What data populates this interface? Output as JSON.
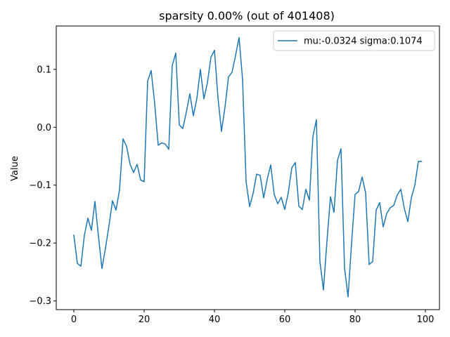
{
  "chart_data": {
    "type": "line",
    "title": "sparsity 0.00% (out of 401408)",
    "xlabel": "",
    "ylabel": "Value",
    "xlim": [
      -5,
      104
    ],
    "ylim": [
      -0.315,
      0.175
    ],
    "xticks": [
      0,
      20,
      40,
      60,
      80,
      100
    ],
    "xtick_labels": [
      "0",
      "20",
      "40",
      "60",
      "80",
      "100"
    ],
    "yticks": [
      -0.3,
      -0.2,
      -0.1,
      0.0,
      0.1
    ],
    "ytick_labels": [
      "−0.3",
      "−0.2",
      "−0.1",
      "0.0",
      "0.1"
    ],
    "grid": false,
    "legend_position": "top-right",
    "series": [
      {
        "name": "mu:-0.0324 sigma:0.1074",
        "color": "#1f77b4",
        "x": [
          0,
          1,
          2,
          3,
          4,
          5,
          6,
          7,
          8,
          9,
          10,
          11,
          12,
          13,
          14,
          15,
          16,
          17,
          18,
          19,
          20,
          21,
          22,
          23,
          24,
          25,
          26,
          27,
          28,
          29,
          30,
          31,
          32,
          33,
          34,
          35,
          36,
          37,
          38,
          39,
          40,
          41,
          42,
          43,
          44,
          45,
          46,
          47,
          48,
          49,
          50,
          51,
          52,
          53,
          54,
          55,
          56,
          57,
          58,
          59,
          60,
          61,
          62,
          63,
          64,
          65,
          66,
          67,
          68,
          69,
          70,
          71,
          72,
          73,
          74,
          75,
          76,
          77,
          78,
          79,
          80,
          81,
          82,
          83,
          84,
          85,
          86,
          87,
          88,
          89,
          90,
          91,
          92,
          93,
          94,
          95,
          96,
          97,
          98,
          99
        ],
        "y": [
          -0.186,
          -0.235,
          -0.24,
          -0.187,
          -0.157,
          -0.178,
          -0.128,
          -0.188,
          -0.244,
          -0.209,
          -0.17,
          -0.127,
          -0.143,
          -0.108,
          -0.02,
          -0.033,
          -0.064,
          -0.078,
          -0.064,
          -0.091,
          -0.094,
          0.08,
          0.098,
          0.041,
          -0.031,
          -0.027,
          -0.029,
          -0.038,
          0.107,
          0.128,
          0.004,
          -0.002,
          0.026,
          0.058,
          0.02,
          0.05,
          0.1,
          0.049,
          0.077,
          0.121,
          0.133,
          0.051,
          -0.007,
          0.035,
          0.087,
          0.095,
          0.124,
          0.155,
          0.082,
          -0.094,
          -0.137,
          -0.114,
          -0.081,
          -0.083,
          -0.122,
          -0.09,
          -0.065,
          -0.116,
          -0.132,
          -0.121,
          -0.142,
          -0.113,
          -0.07,
          -0.061,
          -0.136,
          -0.142,
          -0.107,
          -0.126,
          -0.016,
          0.013,
          -0.232,
          -0.281,
          -0.197,
          -0.12,
          -0.147,
          -0.057,
          -0.037,
          -0.243,
          -0.293,
          -0.2,
          -0.116,
          -0.111,
          -0.086,
          -0.113,
          -0.237,
          -0.232,
          -0.143,
          -0.13,
          -0.172,
          -0.149,
          -0.139,
          -0.135,
          -0.117,
          -0.107,
          -0.14,
          -0.163,
          -0.122,
          -0.1,
          -0.059,
          -0.059
        ]
      }
    ]
  }
}
